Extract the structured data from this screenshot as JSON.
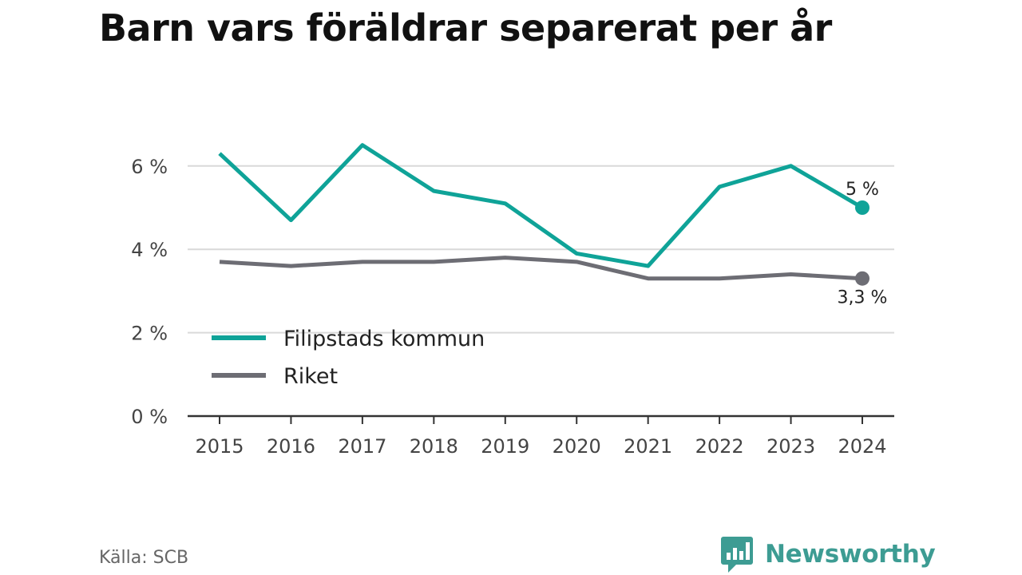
{
  "chart_data": {
    "type": "line",
    "title": "Barn vars föräldrar separerat per år",
    "x": [
      "2015",
      "2016",
      "2017",
      "2018",
      "2019",
      "2020",
      "2021",
      "2022",
      "2023",
      "2024"
    ],
    "y_ticks": [
      "0 %",
      "2 %",
      "4 %",
      "6 %"
    ],
    "ylim": [
      0,
      7
    ],
    "grid": true,
    "legend_position": "bottom-left",
    "series": [
      {
        "name": "Filipstads kommun",
        "color": "#0fa398",
        "values": [
          6.3,
          4.7,
          6.5,
          5.4,
          5.1,
          3.9,
          3.6,
          5.5,
          6.0,
          5.0
        ],
        "end_label": "5 %"
      },
      {
        "name": "Riket",
        "color": "#6d6d74",
        "values": [
          3.7,
          3.6,
          3.7,
          3.7,
          3.8,
          3.7,
          3.3,
          3.3,
          3.4,
          3.3
        ],
        "end_label": "3,3 %"
      }
    ]
  },
  "footer": {
    "source": "Källa: SCB",
    "brand": "Newsworthy",
    "brand_icon": "newsworthy-logo-icon",
    "brand_color": "#3d9c93"
  }
}
